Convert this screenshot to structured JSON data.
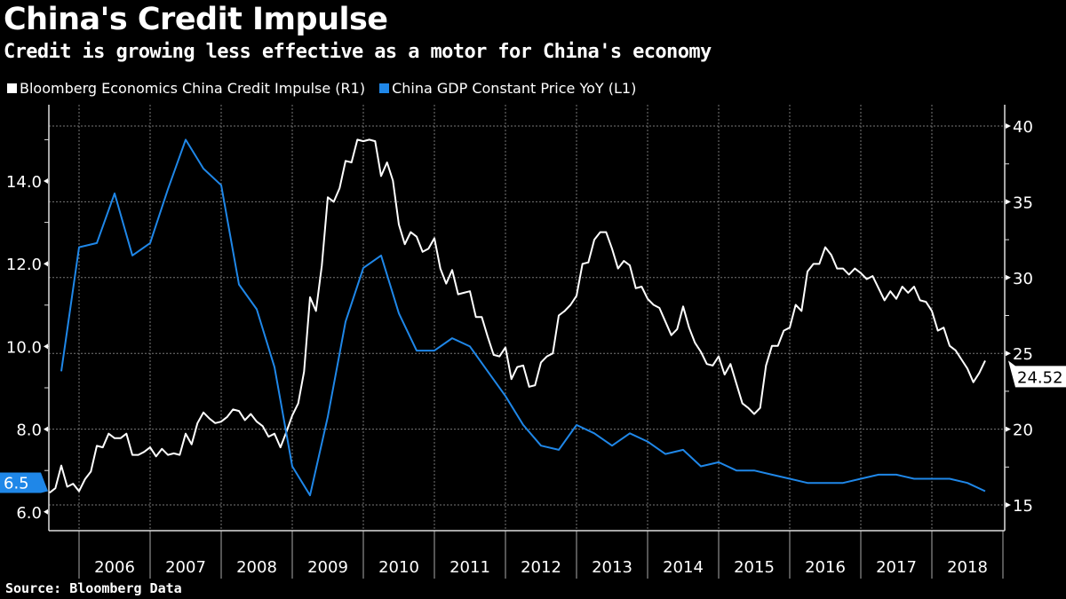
{
  "title": "China's Credit Impulse",
  "subtitle": "Credit is growing less effective as a motor for China's economy",
  "source": "Source: Bloomberg Data",
  "chart_data": {
    "type": "line",
    "title": "China's Credit Impulse",
    "grid": true,
    "legend_placement": "top-left",
    "x_ticks": [
      "2006",
      "2007",
      "2008",
      "2009",
      "2010",
      "2011",
      "2012",
      "2013",
      "2014",
      "2015",
      "2016",
      "2017",
      "2018"
    ],
    "left_axis": {
      "ticks": [
        "6.0",
        "8.0",
        "10.0",
        "12.0",
        "14.0"
      ],
      "range": [
        5.5,
        15.3
      ]
    },
    "right_axis": {
      "ticks": [
        "15",
        "20",
        "25",
        "30",
        "35",
        "40"
      ],
      "range": [
        14,
        41
      ]
    },
    "series": [
      {
        "name": "Bloomberg Economics China Credit Impulse  (R1)",
        "axis": "right",
        "color": "#ffffff",
        "last_value_label": "24.52",
        "dates": [
          "2005-07",
          "2005-08",
          "2005-09",
          "2005-10",
          "2005-11",
          "2005-12",
          "2006-01",
          "2006-02",
          "2006-03",
          "2006-04",
          "2006-05",
          "2006-06",
          "2006-07",
          "2006-08",
          "2006-09",
          "2006-10",
          "2006-11",
          "2006-12",
          "2007-01",
          "2007-02",
          "2007-03",
          "2007-04",
          "2007-05",
          "2007-06",
          "2007-07",
          "2007-08",
          "2007-09",
          "2007-10",
          "2007-11",
          "2007-12",
          "2008-01",
          "2008-02",
          "2008-03",
          "2008-04",
          "2008-05",
          "2008-06",
          "2008-07",
          "2008-08",
          "2008-09",
          "2008-10",
          "2008-11",
          "2008-12",
          "2009-01",
          "2009-02",
          "2009-03",
          "2009-04",
          "2009-05",
          "2009-06",
          "2009-07",
          "2009-08",
          "2009-09",
          "2009-10",
          "2009-11",
          "2009-12",
          "2010-01",
          "2010-02",
          "2010-03",
          "2010-04",
          "2010-05",
          "2010-06",
          "2010-07",
          "2010-08",
          "2010-09",
          "2010-10",
          "2010-11",
          "2010-12",
          "2011-01",
          "2011-02",
          "2011-03",
          "2011-04",
          "2011-05",
          "2011-06",
          "2011-07",
          "2011-08",
          "2011-09",
          "2011-10",
          "2011-11",
          "2011-12",
          "2012-01",
          "2012-02",
          "2012-03",
          "2012-04",
          "2012-05",
          "2012-06",
          "2012-07",
          "2012-08",
          "2012-09",
          "2012-10",
          "2012-11",
          "2012-12",
          "2013-01",
          "2013-02",
          "2013-03",
          "2013-04",
          "2013-05",
          "2013-06",
          "2013-07",
          "2013-08",
          "2013-09",
          "2013-10",
          "2013-11",
          "2013-12",
          "2014-01",
          "2014-02",
          "2014-03",
          "2014-04",
          "2014-05",
          "2014-06",
          "2014-07",
          "2014-08",
          "2014-09",
          "2014-10",
          "2014-11",
          "2014-12",
          "2015-01",
          "2015-02",
          "2015-03",
          "2015-04",
          "2015-05",
          "2015-06",
          "2015-07",
          "2015-08",
          "2015-09",
          "2015-10",
          "2015-11",
          "2015-12",
          "2016-01",
          "2016-02",
          "2016-03",
          "2016-04",
          "2016-05",
          "2016-06",
          "2016-07",
          "2016-08",
          "2016-09",
          "2016-10",
          "2016-11",
          "2016-12",
          "2017-01",
          "2017-02",
          "2017-03",
          "2017-04",
          "2017-05",
          "2017-06",
          "2017-07",
          "2017-08",
          "2017-09",
          "2017-10",
          "2017-11",
          "2017-12",
          "2018-01",
          "2018-02",
          "2018-03",
          "2018-04",
          "2018-05",
          "2018-06",
          "2018-07",
          "2018-08",
          "2018-09"
        ],
        "values": [
          15.8,
          16.1,
          17.6,
          16.2,
          16.4,
          15.9,
          16.7,
          17.2,
          18.9,
          18.8,
          19.7,
          19.4,
          19.4,
          19.7,
          18.3,
          18.3,
          18.5,
          18.8,
          18.2,
          18.7,
          18.3,
          18.4,
          18.3,
          19.7,
          19.0,
          20.4,
          21.1,
          20.7,
          20.4,
          20.5,
          20.8,
          21.3,
          21.2,
          20.6,
          21.0,
          20.5,
          20.2,
          19.5,
          19.7,
          18.8,
          19.8,
          20.9,
          21.7,
          23.8,
          28.7,
          27.8,
          30.8,
          35.3,
          35.0,
          35.9,
          37.7,
          37.6,
          39.1,
          39.0,
          39.1,
          39.0,
          36.7,
          37.6,
          36.4,
          33.5,
          32.2,
          33.0,
          32.7,
          31.7,
          31.9,
          32.6,
          30.6,
          29.6,
          30.5,
          28.9,
          29.0,
          29.1,
          27.4,
          27.4,
          26.1,
          24.9,
          24.8,
          25.4,
          23.3,
          24.1,
          24.2,
          22.8,
          22.9,
          24.4,
          24.8,
          25.0,
          27.5,
          27.8,
          28.2,
          28.8,
          30.9,
          31.0,
          32.5,
          33.0,
          33.0,
          31.9,
          30.6,
          31.1,
          30.8,
          29.3,
          29.4,
          28.6,
          28.2,
          28.0,
          27.1,
          26.2,
          26.6,
          28.1,
          26.7,
          25.7,
          25.1,
          24.3,
          24.2,
          24.8,
          23.6,
          24.3,
          23.0,
          21.7,
          21.4,
          21.0,
          21.4,
          24.2,
          25.5,
          25.5,
          26.5,
          26.7,
          28.2,
          27.8,
          30.4,
          30.9,
          30.9,
          32.0,
          31.5,
          30.6,
          30.6,
          30.2,
          30.6,
          30.3,
          29.9,
          30.1,
          29.3,
          28.5,
          29.1,
          28.6,
          29.4,
          29.0,
          29.4,
          28.5,
          28.4,
          27.8,
          26.5,
          26.7,
          25.5,
          25.2,
          24.6,
          24.0,
          23.1,
          23.7,
          24.52
        ]
      },
      {
        "name": "China GDP Constant Price YoY  (L1)",
        "axis": "left",
        "color": "#1f87e8",
        "last_value_label": "6.5",
        "dates": [
          "2005-09",
          "2005-12",
          "2006-03",
          "2006-06",
          "2006-09",
          "2006-12",
          "2007-03",
          "2007-06",
          "2007-09",
          "2007-12",
          "2008-03",
          "2008-06",
          "2008-09",
          "2008-12",
          "2009-03",
          "2009-06",
          "2009-09",
          "2009-12",
          "2010-03",
          "2010-06",
          "2010-09",
          "2010-12",
          "2011-03",
          "2011-06",
          "2011-09",
          "2011-12",
          "2012-03",
          "2012-06",
          "2012-09",
          "2012-12",
          "2013-03",
          "2013-06",
          "2013-09",
          "2013-12",
          "2014-03",
          "2014-06",
          "2014-09",
          "2014-12",
          "2015-03",
          "2015-06",
          "2015-09",
          "2015-12",
          "2016-03",
          "2016-06",
          "2016-09",
          "2016-12",
          "2017-03",
          "2017-06",
          "2017-09",
          "2017-12",
          "2018-03",
          "2018-06",
          "2018-09"
        ],
        "values": [
          9.4,
          12.4,
          12.5,
          13.7,
          12.2,
          12.5,
          13.8,
          15.0,
          14.3,
          13.9,
          11.5,
          10.9,
          9.5,
          7.1,
          6.4,
          8.3,
          10.6,
          11.9,
          12.2,
          10.8,
          9.9,
          9.9,
          10.2,
          10.0,
          9.4,
          8.8,
          8.1,
          7.6,
          7.5,
          8.1,
          7.9,
          7.6,
          7.9,
          7.7,
          7.4,
          7.5,
          7.1,
          7.2,
          7.0,
          7.0,
          6.9,
          6.8,
          6.7,
          6.7,
          6.7,
          6.8,
          6.9,
          6.9,
          6.8,
          6.8,
          6.8,
          6.7,
          6.5
        ]
      }
    ]
  }
}
